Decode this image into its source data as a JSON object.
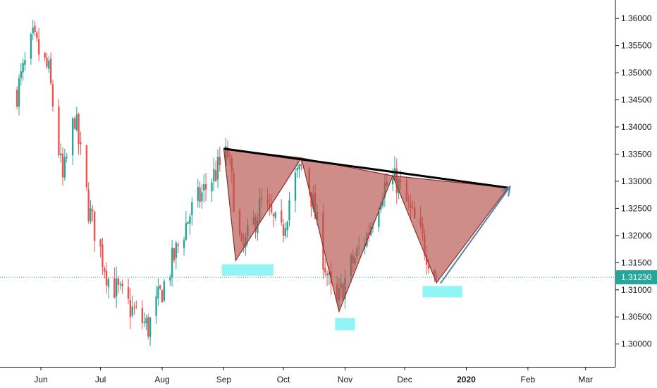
{
  "chart_data": {
    "type": "candlestick",
    "title": "",
    "xlabel": "",
    "ylabel": "",
    "ylim": [
      1.2958,
      1.3634
    ],
    "price_ticks": [
      "1.30000",
      "1.30500",
      "1.31000",
      "1.31500",
      "1.32000",
      "1.32500",
      "1.33000",
      "1.33500",
      "1.34000",
      "1.34500",
      "1.35000",
      "1.35500",
      "1.36000"
    ],
    "time_ticks": [
      {
        "label": "Jun",
        "date": "2019-06-01"
      },
      {
        "label": "Jul",
        "date": "2019-07-01"
      },
      {
        "label": "Aug",
        "date": "2019-08-01"
      },
      {
        "label": "Sep",
        "date": "2019-09-01"
      },
      {
        "label": "Oct",
        "date": "2019-10-01"
      },
      {
        "label": "Nov",
        "date": "2019-11-01"
      },
      {
        "label": "Dec",
        "date": "2019-12-01"
      },
      {
        "label": "2020",
        "date": "2020-01-01"
      },
      {
        "label": "Feb",
        "date": "2020-02-01"
      },
      {
        "label": "Mar",
        "date": "2020-03-01"
      }
    ],
    "current_price": {
      "value": 1.3123,
      "label": "1.31230",
      "color": "#26a69a"
    },
    "colors": {
      "up": "#26a69a",
      "down": "#ef5350",
      "pattern_fill": "#b5504a",
      "support_zone": "#7ff3f3",
      "trendline": "#000000",
      "projection": "#5b7fa6"
    },
    "trend_anchors": [
      {
        "date": "2019-05-20",
        "price": 1.3465
      },
      {
        "date": "2019-05-28",
        "price": 1.356
      },
      {
        "date": "2019-06-05",
        "price": 1.35
      },
      {
        "date": "2019-06-12",
        "price": 1.33
      },
      {
        "date": "2019-06-18",
        "price": 1.342
      },
      {
        "date": "2019-06-25",
        "price": 1.325
      },
      {
        "date": "2019-07-05",
        "price": 1.312
      },
      {
        "date": "2019-07-15",
        "price": 1.307
      },
      {
        "date": "2019-07-25",
        "price": 1.303
      },
      {
        "date": "2019-08-05",
        "price": 1.314
      },
      {
        "date": "2019-08-15",
        "price": 1.324
      },
      {
        "date": "2019-08-25",
        "price": 1.33
      },
      {
        "date": "2019-09-03",
        "price": 1.335
      },
      {
        "date": "2019-09-10",
        "price": 1.3165
      },
      {
        "date": "2019-09-20",
        "price": 1.326
      },
      {
        "date": "2019-09-30",
        "price": 1.32
      },
      {
        "date": "2019-10-06",
        "price": 1.33
      },
      {
        "date": "2019-10-12",
        "price": 1.333
      },
      {
        "date": "2019-10-20",
        "price": 1.318
      },
      {
        "date": "2019-10-27",
        "price": 1.306
      },
      {
        "date": "2019-11-02",
        "price": 1.313
      },
      {
        "date": "2019-11-12",
        "price": 1.32
      },
      {
        "date": "2019-11-20",
        "price": 1.329
      },
      {
        "date": "2019-11-27",
        "price": 1.33
      },
      {
        "date": "2019-12-03",
        "price": 1.325
      },
      {
        "date": "2019-12-10",
        "price": 1.319
      },
      {
        "date": "2019-12-17",
        "price": 1.3123
      }
    ],
    "pattern": {
      "trendline": [
        {
          "date": "2019-09-01",
          "price": 1.336
        },
        {
          "date": "2020-01-22",
          "price": 1.3288
        }
      ],
      "triangles": [
        [
          {
            "date": "2019-09-01",
            "price": 1.336
          },
          {
            "date": "2019-09-07",
            "price": 1.3154
          },
          {
            "date": "2019-10-10",
            "price": 1.3343
          }
        ],
        [
          {
            "date": "2019-10-10",
            "price": 1.3343
          },
          {
            "date": "2019-10-29",
            "price": 1.306
          },
          {
            "date": "2019-11-25",
            "price": 1.331
          }
        ],
        [
          {
            "date": "2019-11-25",
            "price": 1.331
          },
          {
            "date": "2019-12-17",
            "price": 1.3113
          },
          {
            "date": "2020-01-22",
            "price": 1.3288
          }
        ]
      ],
      "support_zones": [
        {
          "date_from": "2019-08-31",
          "date_to": "2019-09-26",
          "price_low": 1.3126,
          "price_high": 1.3147
        },
        {
          "date_from": "2019-10-27",
          "date_to": "2019-11-06",
          "price_low": 1.3025,
          "price_high": 1.3048
        },
        {
          "date_from": "2019-12-10",
          "date_to": "2019-12-30",
          "price_low": 1.3086,
          "price_high": 1.3107
        }
      ],
      "projection": [
        {
          "date": "2019-12-19",
          "price": 1.3112
        },
        {
          "date": "2020-01-23",
          "price": 1.329
        }
      ]
    }
  }
}
